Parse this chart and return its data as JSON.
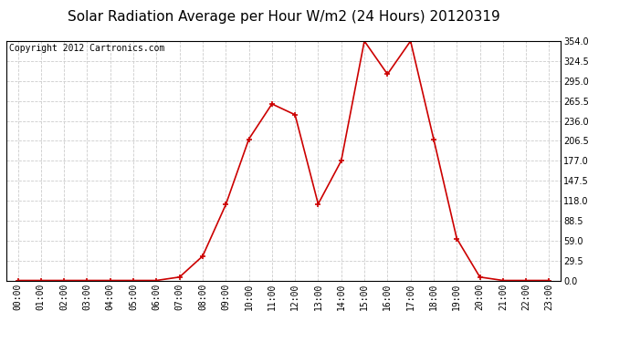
{
  "title": "Solar Radiation Average per Hour W/m2 (24 Hours) 20120319",
  "copyright": "Copyright 2012 Cartronics.com",
  "hours": [
    "00:00",
    "01:00",
    "02:00",
    "03:00",
    "04:00",
    "05:00",
    "06:00",
    "07:00",
    "08:00",
    "09:00",
    "10:00",
    "11:00",
    "12:00",
    "13:00",
    "14:00",
    "15:00",
    "16:00",
    "17:00",
    "18:00",
    "19:00",
    "20:00",
    "21:00",
    "22:00",
    "23:00"
  ],
  "values": [
    0,
    0,
    0,
    0,
    0,
    0,
    0,
    5,
    36,
    112,
    209,
    261,
    245,
    113,
    177,
    354,
    305,
    354,
    209,
    62,
    5,
    0,
    0,
    0
  ],
  "line_color": "#cc0000",
  "marker": "+",
  "marker_size": 5,
  "marker_edge_width": 1.2,
  "bg_color": "#ffffff",
  "grid_color": "#cccccc",
  "ylim": [
    0,
    354
  ],
  "yticks": [
    0.0,
    29.5,
    59.0,
    88.5,
    118.0,
    147.5,
    177.0,
    206.5,
    236.0,
    265.5,
    295.0,
    324.5,
    354.0
  ],
  "title_fontsize": 11,
  "copyright_fontsize": 7,
  "axis_fontsize": 7,
  "line_width": 1.2
}
